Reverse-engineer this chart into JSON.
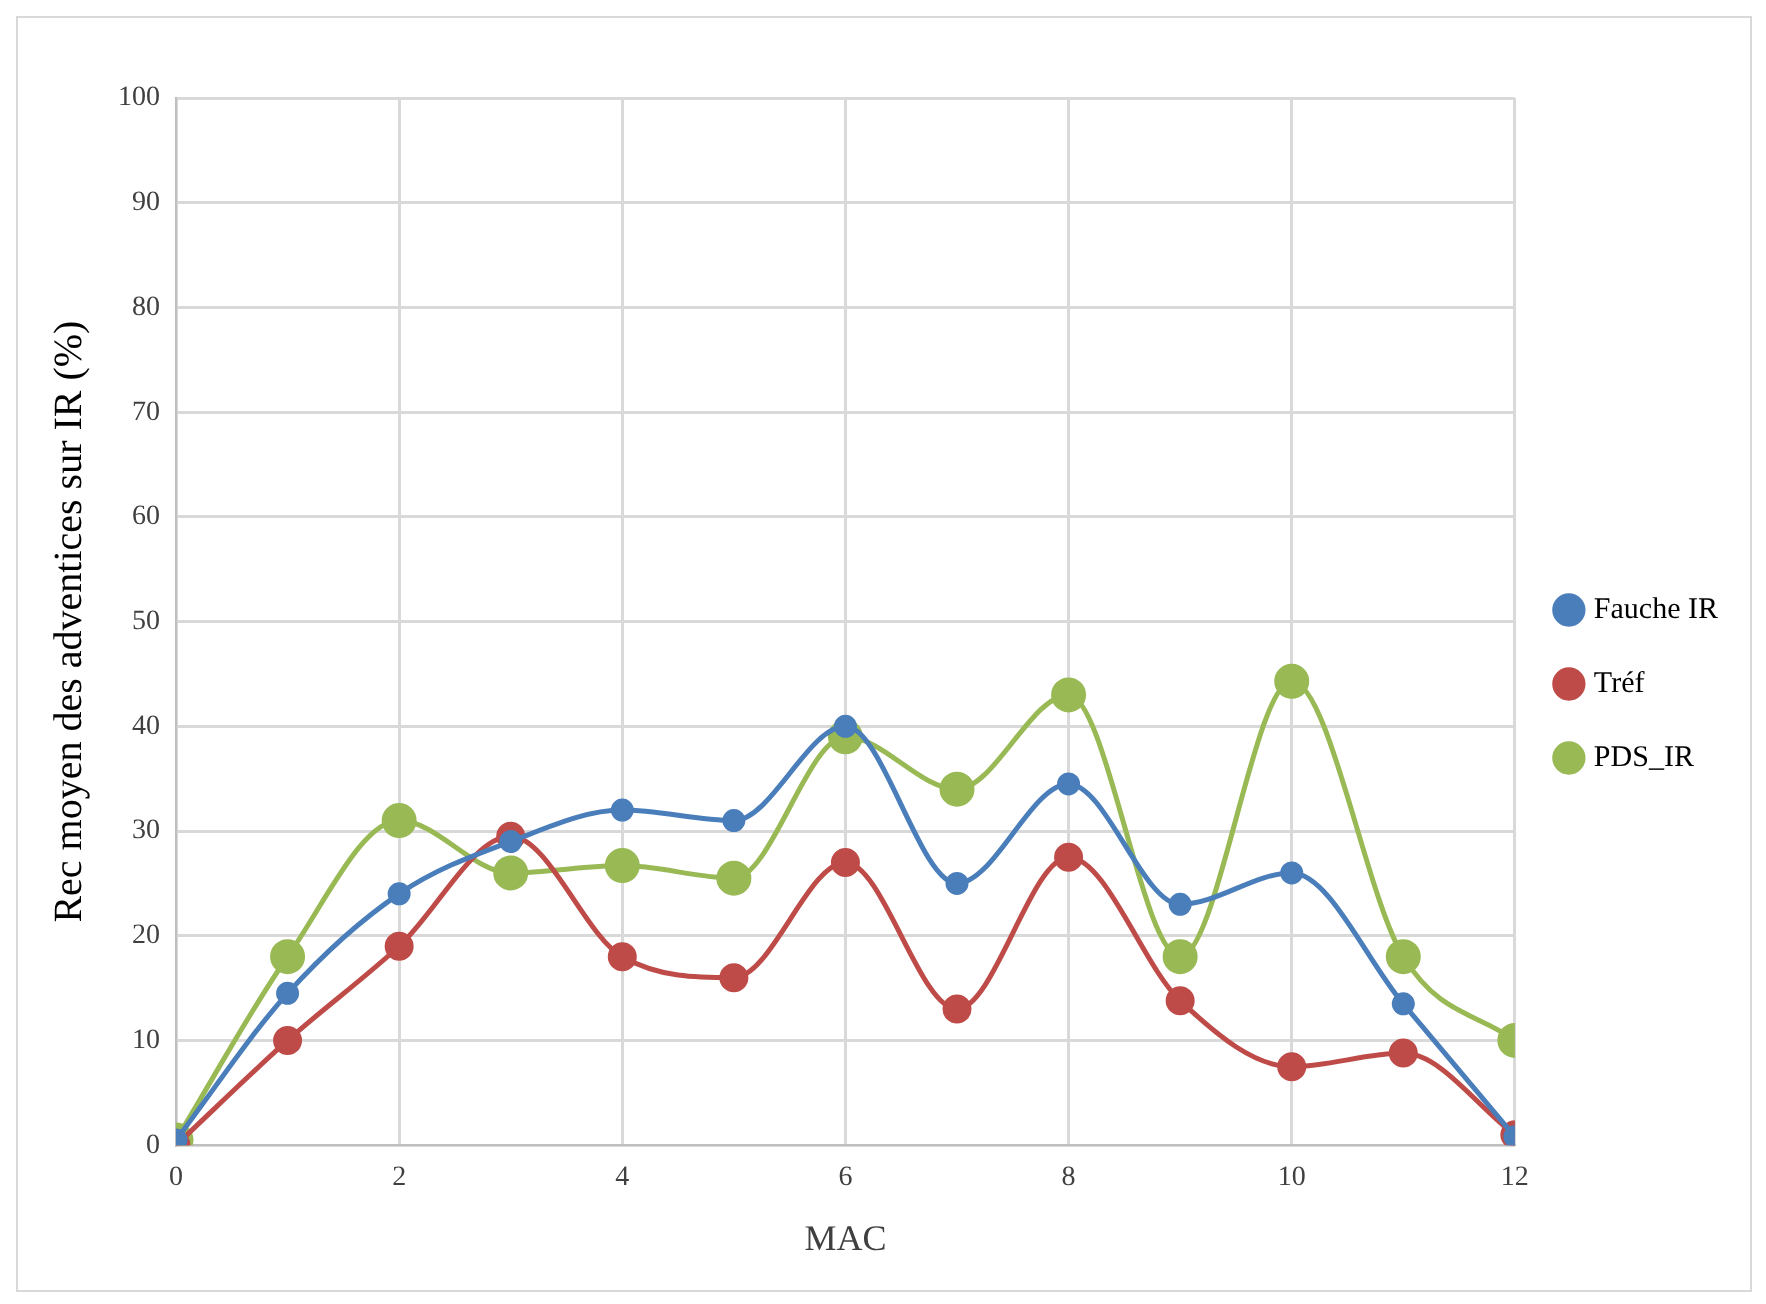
{
  "chart_data": {
    "type": "line",
    "xlabel": "MAC",
    "ylabel": "Rec moyen des adventices sur IR (%)",
    "x": [
      0,
      1,
      2,
      3,
      4,
      5,
      6,
      7,
      8,
      9,
      10,
      11,
      12
    ],
    "xlim": [
      0,
      12
    ],
    "xticks": [
      0,
      2,
      4,
      6,
      8,
      10,
      12
    ],
    "ylim": [
      0,
      100
    ],
    "yticks": [
      0,
      10,
      20,
      30,
      40,
      50,
      60,
      70,
      80,
      90,
      100
    ],
    "grid": true,
    "legend": "right",
    "marker": "circle",
    "line_style": "solid",
    "series": [
      {
        "name": "Fauche IR",
        "color": "#4a7ebb",
        "values": [
          0.5,
          14.5,
          24,
          29,
          32,
          31,
          40,
          25,
          34.5,
          23,
          26,
          13.5,
          0.8
        ]
      },
      {
        "name": "Tréf",
        "color": "#be4b48",
        "values": [
          0,
          10,
          19,
          29.5,
          18,
          16,
          27,
          13,
          27.5,
          13.8,
          7.5,
          8.8,
          1
        ]
      },
      {
        "name": "PDS_IR",
        "color": "#98b954",
        "values": [
          0.5,
          18,
          31,
          26,
          26.7,
          25.5,
          39,
          34,
          43,
          18,
          44.3,
          18,
          10
        ]
      }
    ]
  }
}
